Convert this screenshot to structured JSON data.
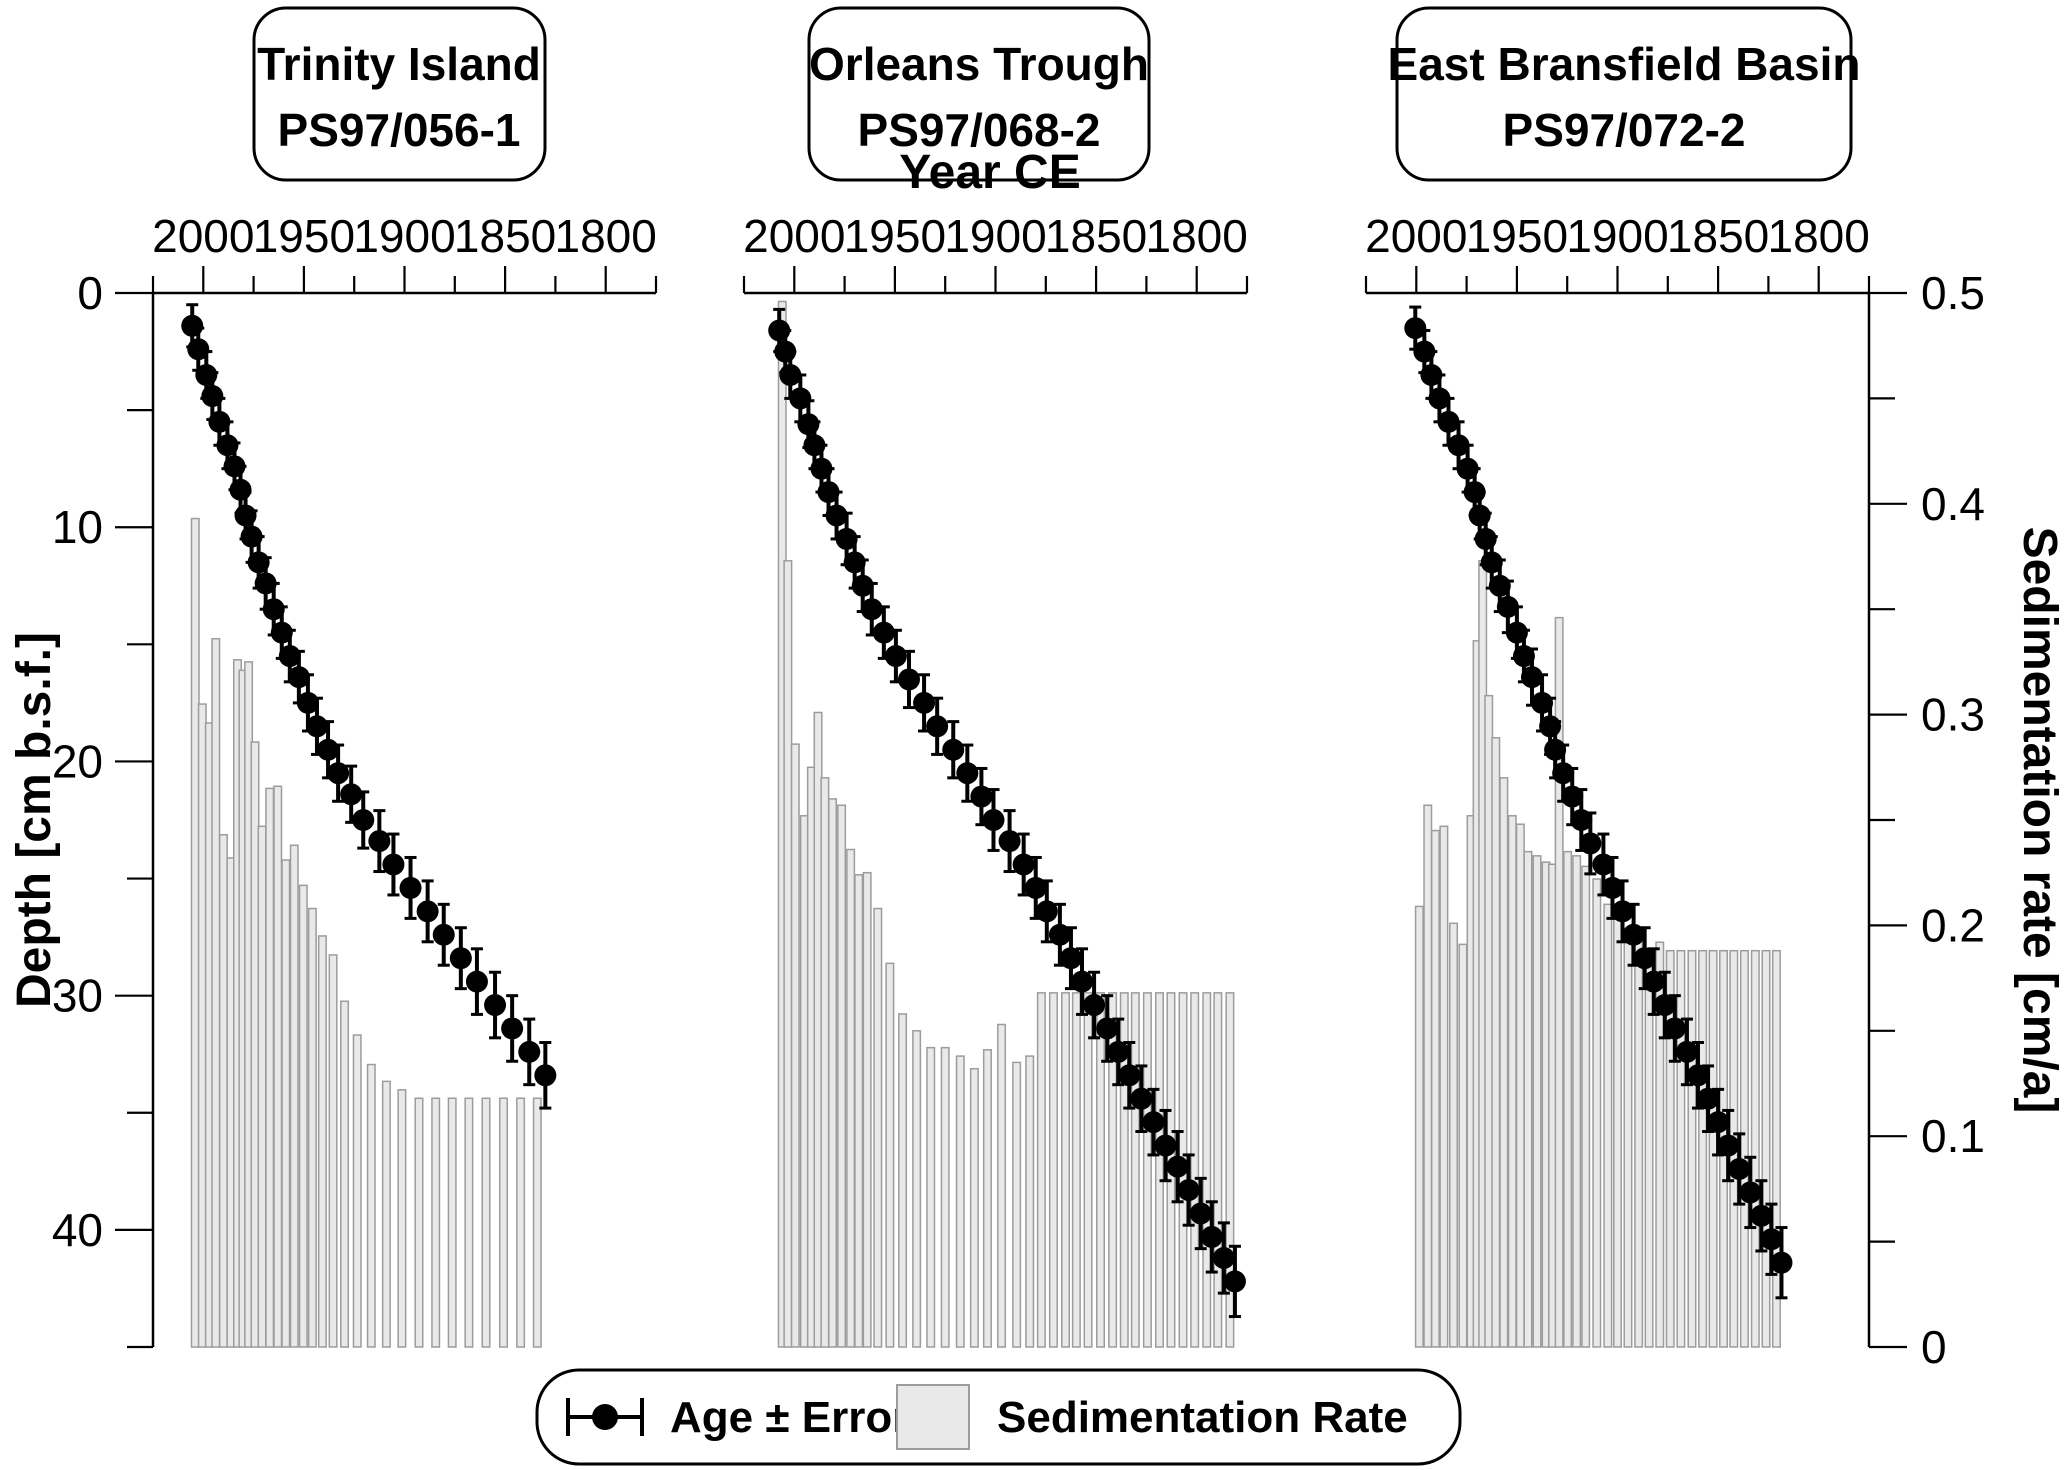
{
  "figure": {
    "x_axis_title": "Year CE",
    "y_left_title": "Depth [cm b.s.f.]",
    "y_right_title": "Sedimentation rate [cm/a]"
  },
  "legend": {
    "age_label": "Age ± Error",
    "sed_label": "Sedimentation Rate"
  },
  "colors": {
    "marker": "#000000",
    "error_bar": "#000000",
    "bar_fill": "#e9e9e9",
    "bar_stroke": "#9c9c9c",
    "axis": "#000000",
    "box_border": "#000000",
    "background": "#ffffff"
  },
  "chart_data": [
    {
      "type": "scatter+bar",
      "title": "Trinity Island",
      "core_id": "PS97/056-1",
      "x_axis": {
        "label": "Year CE",
        "range": [
          2025,
          1775
        ],
        "major_ticks": [
          2000,
          1950,
          1900,
          1850,
          1800
        ],
        "minor_step": 25
      },
      "y_left_axis": {
        "label": "Depth [cm b.s.f.]",
        "range": [
          0,
          45
        ],
        "major_ticks": [
          0,
          10,
          20,
          30,
          40
        ],
        "minor_step": 5
      },
      "y_right_axis": {
        "label": "Sedimentation rate [cm/a]",
        "range": [
          0,
          0.5
        ],
        "major_ticks": [
          0.5,
          0.4,
          0.3,
          0.2,
          0.1,
          0
        ],
        "minor_step": 0.05
      },
      "age_points_year_depth_err": [
        [
          2005.5,
          1.4,
          0.9
        ],
        [
          2002.5,
          2.4,
          0.9
        ],
        [
          1998.5,
          3.5,
          1.0
        ],
        [
          1995.5,
          4.4,
          1.0
        ],
        [
          1992,
          5.5,
          1.0
        ],
        [
          1988,
          6.5,
          1.0
        ],
        [
          1984.5,
          7.4,
          1.0
        ],
        [
          1981.5,
          8.4,
          1.0
        ],
        [
          1979,
          9.5,
          1.0
        ],
        [
          1976,
          10.4,
          1.1
        ],
        [
          1972.5,
          11.5,
          1.1
        ],
        [
          1969,
          12.4,
          1.1
        ],
        [
          1965,
          13.5,
          1.1
        ],
        [
          1961,
          14.5,
          1.1
        ],
        [
          1957,
          15.5,
          1.1
        ],
        [
          1952.5,
          16.4,
          1.1
        ],
        [
          1948,
          17.5,
          1.2
        ],
        [
          1943.5,
          18.5,
          1.2
        ],
        [
          1938,
          19.5,
          1.2
        ],
        [
          1933,
          20.5,
          1.2
        ],
        [
          1926.5,
          21.4,
          1.2
        ],
        [
          1920.5,
          22.5,
          1.2
        ],
        [
          1912.5,
          23.4,
          1.3
        ],
        [
          1905.5,
          24.4,
          1.3
        ],
        [
          1897,
          25.4,
          1.3
        ],
        [
          1888.5,
          26.4,
          1.3
        ],
        [
          1880.5,
          27.4,
          1.3
        ],
        [
          1872,
          28.4,
          1.3
        ],
        [
          1864,
          29.4,
          1.4
        ],
        [
          1855,
          30.4,
          1.4
        ],
        [
          1846.5,
          31.4,
          1.4
        ],
        [
          1838,
          32.4,
          1.4
        ],
        [
          1830,
          33.4,
          1.4
        ]
      ],
      "sed_bars_year_rate": [
        [
          2004,
          0.393
        ],
        [
          2000.5,
          0.305
        ],
        [
          1997,
          0.296
        ],
        [
          1993.8,
          0.336
        ],
        [
          1990,
          0.243
        ],
        [
          1986.3,
          0.232
        ],
        [
          1983,
          0.326
        ],
        [
          1980.3,
          0.321
        ],
        [
          1977.5,
          0.325
        ],
        [
          1974.3,
          0.287
        ],
        [
          1970.8,
          0.247
        ],
        [
          1967,
          0.265
        ],
        [
          1963,
          0.266
        ],
        [
          1959,
          0.231
        ],
        [
          1954.8,
          0.238
        ],
        [
          1950.3,
          0.219
        ],
        [
          1945.8,
          0.208
        ],
        [
          1940.8,
          0.195
        ],
        [
          1935.5,
          0.186
        ],
        [
          1929.8,
          0.164
        ],
        [
          1923.5,
          0.148
        ],
        [
          1916.5,
          0.134
        ],
        [
          1909,
          0.126
        ],
        [
          1901.3,
          0.122
        ],
        [
          1892.8,
          0.118
        ],
        [
          1884.5,
          0.118
        ],
        [
          1876.3,
          0.118
        ],
        [
          1868,
          0.118
        ],
        [
          1859.5,
          0.118
        ],
        [
          1850.8,
          0.118
        ],
        [
          1842.3,
          0.118
        ],
        [
          1834,
          0.118
        ]
      ]
    },
    {
      "type": "scatter+bar",
      "title": "Orleans Trough",
      "core_id": "PS97/068-2",
      "x_axis": {
        "label": "Year CE",
        "range": [
          2025,
          1775
        ],
        "major_ticks": [
          2000,
          1950,
          1900,
          1850,
          1800
        ],
        "minor_step": 25
      },
      "y_left_axis": {
        "label": "Depth [cm b.s.f.]",
        "range": [
          0,
          45
        ],
        "major_ticks": [
          0,
          10,
          20,
          30,
          40
        ],
        "minor_step": 5
      },
      "y_right_axis": {
        "label": "Sedimentation rate [cm/a]",
        "range": [
          0,
          0.5
        ],
        "major_ticks": [
          0.5,
          0.4,
          0.3,
          0.2,
          0.1,
          0
        ],
        "minor_step": 0.05
      },
      "age_points_year_depth_err": [
        [
          2007.5,
          1.6,
          0.9
        ],
        [
          2004.5,
          2.5,
          0.9
        ],
        [
          2002,
          3.5,
          1.0
        ],
        [
          1997,
          4.5,
          1.0
        ],
        [
          1993,
          5.6,
          1.0
        ],
        [
          1990,
          6.5,
          1.0
        ],
        [
          1986.5,
          7.5,
          1.0
        ],
        [
          1983,
          8.5,
          1.0
        ],
        [
          1979,
          9.5,
          1.0
        ],
        [
          1974,
          10.5,
          1.1
        ],
        [
          1970,
          11.5,
          1.1
        ],
        [
          1966,
          12.5,
          1.1
        ],
        [
          1961.5,
          13.5,
          1.1
        ],
        [
          1955.5,
          14.5,
          1.1
        ],
        [
          1949.5,
          15.5,
          1.1
        ],
        [
          1943,
          16.5,
          1.2
        ],
        [
          1935.5,
          17.5,
          1.2
        ],
        [
          1929,
          18.5,
          1.2
        ],
        [
          1921,
          19.5,
          1.2
        ],
        [
          1914,
          20.5,
          1.2
        ],
        [
          1907,
          21.5,
          1.2
        ],
        [
          1901,
          22.5,
          1.3
        ],
        [
          1893,
          23.4,
          1.3
        ],
        [
          1886,
          24.4,
          1.3
        ],
        [
          1880,
          25.4,
          1.3
        ],
        [
          1874.5,
          26.4,
          1.3
        ],
        [
          1868,
          27.4,
          1.3
        ],
        [
          1862.5,
          28.4,
          1.3
        ],
        [
          1857,
          29.4,
          1.4
        ],
        [
          1851,
          30.4,
          1.4
        ],
        [
          1844.5,
          31.4,
          1.4
        ],
        [
          1839,
          32.4,
          1.4
        ],
        [
          1833.5,
          33.4,
          1.4
        ],
        [
          1827.5,
          34.4,
          1.4
        ],
        [
          1821.5,
          35.4,
          1.4
        ],
        [
          1815.5,
          36.4,
          1.5
        ],
        [
          1809.5,
          37.3,
          1.5
        ],
        [
          1804,
          38.3,
          1.5
        ],
        [
          1798,
          39.3,
          1.5
        ],
        [
          1792.5,
          40.3,
          1.5
        ],
        [
          1786.5,
          41.2,
          1.5
        ],
        [
          1781,
          42.2,
          1.5
        ]
      ],
      "sed_bars_year_rate": [
        [
          2006,
          0.496
        ],
        [
          2003.2,
          0.373
        ],
        [
          1999.5,
          0.286
        ],
        [
          1995,
          0.252
        ],
        [
          1991.5,
          0.275
        ],
        [
          1988.2,
          0.301
        ],
        [
          1984.8,
          0.27
        ],
        [
          1981,
          0.26
        ],
        [
          1976.5,
          0.257
        ],
        [
          1972,
          0.236
        ],
        [
          1968,
          0.224
        ],
        [
          1963.8,
          0.225
        ],
        [
          1958.5,
          0.208
        ],
        [
          1952.5,
          0.182
        ],
        [
          1946.2,
          0.158
        ],
        [
          1939.2,
          0.15
        ],
        [
          1932.2,
          0.142
        ],
        [
          1925,
          0.142
        ],
        [
          1917.5,
          0.138
        ],
        [
          1910.5,
          0.132
        ],
        [
          1904,
          0.141
        ],
        [
          1897,
          0.153
        ],
        [
          1889.5,
          0.135
        ],
        [
          1883,
          0.138
        ],
        [
          1877.2,
          0.168
        ],
        [
          1871.2,
          0.168
        ],
        [
          1865.2,
          0.168
        ],
        [
          1859.8,
          0.168
        ],
        [
          1854,
          0.168
        ],
        [
          1847.8,
          0.168
        ],
        [
          1841.8,
          0.168
        ],
        [
          1836,
          0.168
        ],
        [
          1830.5,
          0.168
        ],
        [
          1824.5,
          0.168
        ],
        [
          1818.5,
          0.168
        ],
        [
          1812.8,
          0.168
        ],
        [
          1806.8,
          0.168
        ],
        [
          1801,
          0.168
        ],
        [
          1795,
          0.168
        ],
        [
          1789.5,
          0.168
        ],
        [
          1783.5,
          0.168
        ]
      ]
    },
    {
      "type": "scatter+bar",
      "title": "East Bransfield Basin",
      "core_id": "PS97/072-2",
      "x_axis": {
        "label": "Year CE",
        "range": [
          2025,
          1775
        ],
        "major_ticks": [
          2000,
          1950,
          1900,
          1850,
          1800
        ],
        "minor_step": 25
      },
      "y_left_axis": {
        "label": "Depth [cm b.s.f.]",
        "range": [
          0,
          45
        ],
        "major_ticks": [
          0,
          10,
          20,
          30,
          40
        ],
        "minor_step": 5
      },
      "y_right_axis": {
        "label": "Sedimentation rate [cm/a]",
        "range": [
          0,
          0.5
        ],
        "major_ticks": [
          0.5,
          0.4,
          0.3,
          0.2,
          0.1,
          0
        ],
        "minor_step": 0.05
      },
      "age_points_year_depth_err": [
        [
          2000.5,
          1.5,
          0.9
        ],
        [
          1996,
          2.5,
          0.9
        ],
        [
          1992.5,
          3.5,
          1.0
        ],
        [
          1988.5,
          4.5,
          1.0
        ],
        [
          1984,
          5.5,
          1.0
        ],
        [
          1979,
          6.5,
          1.0
        ],
        [
          1974.5,
          7.5,
          1.0
        ],
        [
          1971,
          8.5,
          1.0
        ],
        [
          1968.5,
          9.5,
          1.0
        ],
        [
          1965.5,
          10.5,
          1.1
        ],
        [
          1962.5,
          11.5,
          1.1
        ],
        [
          1958.5,
          12.5,
          1.1
        ],
        [
          1954.5,
          13.4,
          1.1
        ],
        [
          1950,
          14.5,
          1.1
        ],
        [
          1946.5,
          15.5,
          1.1
        ],
        [
          1942.5,
          16.4,
          1.2
        ],
        [
          1937.5,
          17.5,
          1.2
        ],
        [
          1933.5,
          18.5,
          1.2
        ],
        [
          1931,
          19.5,
          1.2
        ],
        [
          1927,
          20.5,
          1.2
        ],
        [
          1922.5,
          21.5,
          1.2
        ],
        [
          1918,
          22.5,
          1.3
        ],
        [
          1913.5,
          23.5,
          1.3
        ],
        [
          1907,
          24.4,
          1.3
        ],
        [
          1902.5,
          25.4,
          1.3
        ],
        [
          1897.5,
          26.4,
          1.3
        ],
        [
          1892,
          27.4,
          1.3
        ],
        [
          1886.5,
          28.4,
          1.3
        ],
        [
          1882,
          29.4,
          1.4
        ],
        [
          1876.5,
          30.4,
          1.4
        ],
        [
          1871.5,
          31.4,
          1.4
        ],
        [
          1865.5,
          32.4,
          1.4
        ],
        [
          1860,
          33.4,
          1.4
        ],
        [
          1855,
          34.4,
          1.4
        ],
        [
          1850,
          35.4,
          1.4
        ],
        [
          1845,
          36.4,
          1.5
        ],
        [
          1839.5,
          37.4,
          1.5
        ],
        [
          1834,
          38.4,
          1.5
        ],
        [
          1828.5,
          39.4,
          1.5
        ],
        [
          1823.5,
          40.4,
          1.5
        ],
        [
          1818.5,
          41.4,
          1.5
        ]
      ],
      "sed_bars_year_rate": [
        [
          1998.5,
          0.209
        ],
        [
          1994.3,
          0.257
        ],
        [
          1990.5,
          0.245
        ],
        [
          1986.3,
          0.247
        ],
        [
          1981.5,
          0.201
        ],
        [
          1976.8,
          0.191
        ],
        [
          1972.8,
          0.252
        ],
        [
          1969.8,
          0.335
        ],
        [
          1967,
          0.373
        ],
        [
          1964,
          0.309
        ],
        [
          1960.5,
          0.289
        ],
        [
          1956.5,
          0.27
        ],
        [
          1952.3,
          0.252
        ],
        [
          1948.3,
          0.248
        ],
        [
          1944.5,
          0.235
        ],
        [
          1940,
          0.233
        ],
        [
          1935.5,
          0.23
        ],
        [
          1932.3,
          0.229
        ],
        [
          1929,
          0.346
        ],
        [
          1924.8,
          0.235
        ],
        [
          1920.3,
          0.233
        ],
        [
          1915.8,
          0.228
        ],
        [
          1910.3,
          0.222
        ],
        [
          1904.8,
          0.21
        ],
        [
          1900,
          0.207
        ],
        [
          1894.8,
          0.197
        ],
        [
          1889.5,
          0.192
        ],
        [
          1884.3,
          0.184
        ],
        [
          1879,
          0.192
        ],
        [
          1873.8,
          0.188
        ],
        [
          1868.5,
          0.188
        ],
        [
          1863,
          0.188
        ],
        [
          1857.7,
          0.188
        ],
        [
          1852.5,
          0.188
        ],
        [
          1847.3,
          0.188
        ],
        [
          1842.2,
          0.188
        ],
        [
          1836.9,
          0.188
        ],
        [
          1831.5,
          0.188
        ],
        [
          1826.2,
          0.188
        ],
        [
          1821,
          0.188
        ]
      ]
    }
  ]
}
